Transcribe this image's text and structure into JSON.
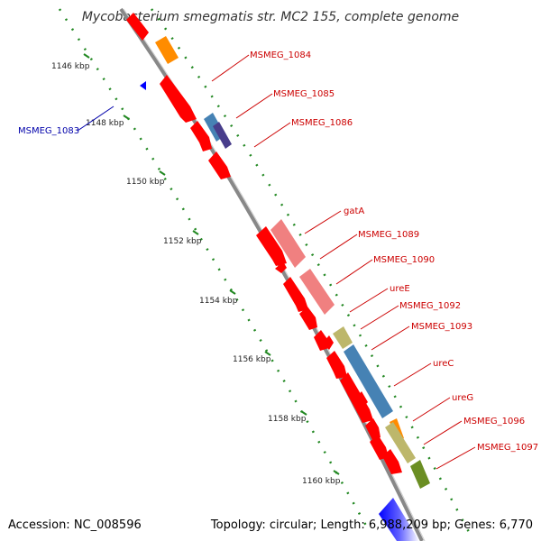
{
  "title": "Mycobacterium smegmatis str. MC2 155, complete genome",
  "accession_label": "Accession: NC_008596",
  "summary_label": "Topology: circular; Length: 6,988,209 bp; Genes: 6,770",
  "colors": {
    "backbone": "#888888",
    "cds": "#ff0000",
    "rna": "#f08080",
    "label_forward": "#cc0000",
    "label_reverse": "#0000aa",
    "tick": "#228822"
  },
  "ticks": [
    {
      "label": "1146 kbp"
    },
    {
      "label": "1148 kbp"
    },
    {
      "label": "1150 kbp"
    },
    {
      "label": "1152 kbp"
    },
    {
      "label": "1154 kbp"
    },
    {
      "label": "1156 kbp"
    },
    {
      "label": "1158 kbp"
    },
    {
      "label": "1160 kbp"
    }
  ],
  "gene_labels": [
    {
      "name": "MSMEG_1083",
      "strand": "reverse"
    },
    {
      "name": "MSMEG_1084",
      "strand": "forward"
    },
    {
      "name": "MSMEG_1085",
      "strand": "forward"
    },
    {
      "name": "MSMEG_1086",
      "strand": "forward"
    },
    {
      "name": "gatA",
      "strand": "forward"
    },
    {
      "name": "MSMEG_1089",
      "strand": "forward"
    },
    {
      "name": "MSMEG_1090",
      "strand": "forward"
    },
    {
      "name": "ureE",
      "strand": "forward"
    },
    {
      "name": "MSMEG_1092",
      "strand": "forward"
    },
    {
      "name": "MSMEG_1093",
      "strand": "forward"
    },
    {
      "name": "ureC",
      "strand": "forward"
    },
    {
      "name": "ureG",
      "strand": "forward"
    },
    {
      "name": "MSMEG_1096",
      "strand": "forward"
    },
    {
      "name": "MSMEG_1097",
      "strand": "forward"
    }
  ],
  "features": [
    {
      "track": "cds",
      "color": "#ff0000"
    },
    {
      "track": "cds",
      "color": "#ff0000"
    },
    {
      "track": "cds",
      "color": "#ff0000"
    },
    {
      "track": "cds",
      "color": "#ff0000"
    },
    {
      "track": "cds",
      "color": "#ff0000"
    },
    {
      "track": "cds",
      "color": "#ff0000"
    },
    {
      "track": "cds",
      "color": "#ff0000"
    },
    {
      "track": "cds",
      "color": "#ff0000"
    },
    {
      "track": "cds",
      "color": "#ff0000"
    },
    {
      "track": "cds",
      "color": "#ff0000"
    },
    {
      "track": "cds",
      "color": "#ff0000"
    },
    {
      "track": "cds",
      "color": "#ff0000"
    },
    {
      "track": "cds",
      "color": "#ff0000"
    },
    {
      "track": "cds",
      "color": "#ff0000"
    },
    {
      "track": "cds",
      "color": "#ff0000"
    },
    {
      "track": "cds",
      "color": "#ff0000"
    },
    {
      "track": "cds",
      "color": "#ff0000"
    },
    {
      "track": "cds",
      "color": "#ff0000"
    },
    {
      "track": "rna",
      "color": "#f08080"
    },
    {
      "track": "rna",
      "color": "#f08080"
    },
    {
      "track": "cog",
      "color": "#ff8c00"
    },
    {
      "track": "cog",
      "color": "#4682b4"
    },
    {
      "track": "cog",
      "color": "#483d8b"
    },
    {
      "track": "cog",
      "color": "#bdb76b"
    },
    {
      "track": "cog",
      "color": "#4682b4"
    },
    {
      "track": "cog",
      "color": "#ff8c00"
    },
    {
      "track": "cog",
      "color": "#bdb76b"
    },
    {
      "track": "cog",
      "color": "#6b8e23"
    },
    {
      "track": "reverse",
      "color": "#0000ff"
    }
  ]
}
